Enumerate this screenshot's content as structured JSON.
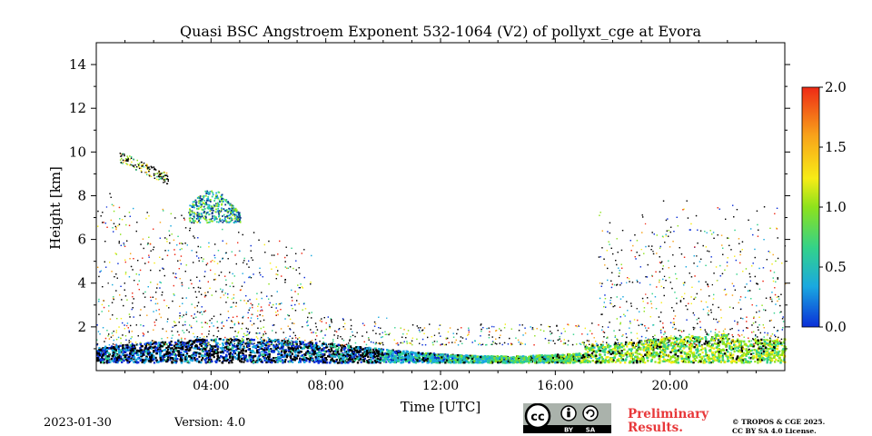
{
  "chart_data": {
    "type": "heatmap",
    "title": "Quasi BSC Angstroem Exponent 532-1064 (V2) of pollyxt_cge at Evora",
    "xlabel": "Time [UTC]",
    "ylabel": "Height [km]",
    "x_range_hours": [
      0,
      24
    ],
    "x_ticks": [
      {
        "value": 4,
        "label": "04:00"
      },
      {
        "value": 8,
        "label": "08:00"
      },
      {
        "value": 12,
        "label": "12:00"
      },
      {
        "value": 16,
        "label": "16:00"
      },
      {
        "value": 20,
        "label": "20:00"
      }
    ],
    "ylim": [
      0,
      15
    ],
    "y_ticks": [
      {
        "value": 2,
        "label": "2"
      },
      {
        "value": 4,
        "label": "4"
      },
      {
        "value": 6,
        "label": "6"
      },
      {
        "value": 8,
        "label": "8"
      },
      {
        "value": 10,
        "label": "10"
      },
      {
        "value": 12,
        "label": "12"
      },
      {
        "value": 14,
        "label": "14"
      }
    ],
    "colorbar": {
      "range": [
        0,
        2
      ],
      "ticks": [
        {
          "value": 0,
          "label": "0.0"
        },
        {
          "value": 0.5,
          "label": "0.5"
        },
        {
          "value": 1,
          "label": "1.0"
        },
        {
          "value": 1.5,
          "label": "1.5"
        },
        {
          "value": 2,
          "label": "2.0"
        }
      ],
      "colors": [
        "#0b2fd8",
        "#1aa9e0",
        "#33d28a",
        "#8de21c",
        "#f7ec16",
        "#f8a21a",
        "#ee2a16"
      ]
    },
    "features": [
      {
        "name": "boundary layer",
        "t_start": 0,
        "t_end": 24,
        "h_bottom": 0.4,
        "h_top": 1.4,
        "value_early": 0.3,
        "value_late": 1.0
      },
      {
        "name": "cirrus",
        "t_start": 0.8,
        "t_end": 2.5,
        "h_bottom": 8.5,
        "h_top": 9.8
      },
      {
        "name": "cloud patch",
        "t_start": 3.2,
        "t_end": 5.0,
        "h_bottom": 6.8,
        "h_top": 8.3,
        "value": 0.6
      }
    ]
  },
  "footer": {
    "date": "2023-01-30",
    "version": "Version: 4.0",
    "preliminary_line1": "Preliminary",
    "preliminary_line2": "Results.",
    "copyright_line1": "© TROPOS & CGE 2025.",
    "copyright_line2": "CC BY SA 4.0 License.",
    "license_badge": {
      "cc": "cc",
      "by": "BY",
      "sa": "SA"
    }
  }
}
